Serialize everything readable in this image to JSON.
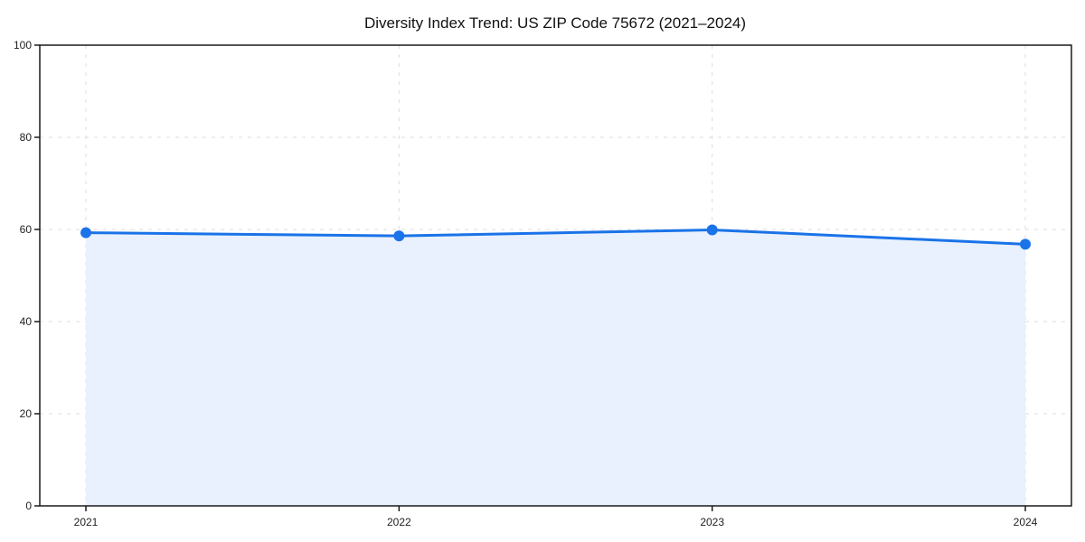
{
  "chart_data": {
    "type": "area",
    "title": "Diversity Index Trend: US ZIP Code 75672 (2021–2024)",
    "categories": [
      "2021",
      "2022",
      "2023",
      "2024"
    ],
    "values": [
      59.3,
      58.6,
      59.9,
      56.8
    ],
    "xlabel": "",
    "ylabel": "",
    "ylim": [
      0,
      100
    ],
    "yticks": [
      0,
      20,
      40,
      60,
      80,
      100
    ],
    "grid": "dashed-both-axes",
    "legend": "none",
    "marker": "circle",
    "colors": {
      "line": "#1a73e8",
      "marker": "#1a73e8",
      "area_fill": "#e8f1fd",
      "grid": "#dcdcdc",
      "spine": "#1a1a1a",
      "tick_label": "#222222",
      "title": "#111111",
      "background": "#ffffff"
    }
  }
}
